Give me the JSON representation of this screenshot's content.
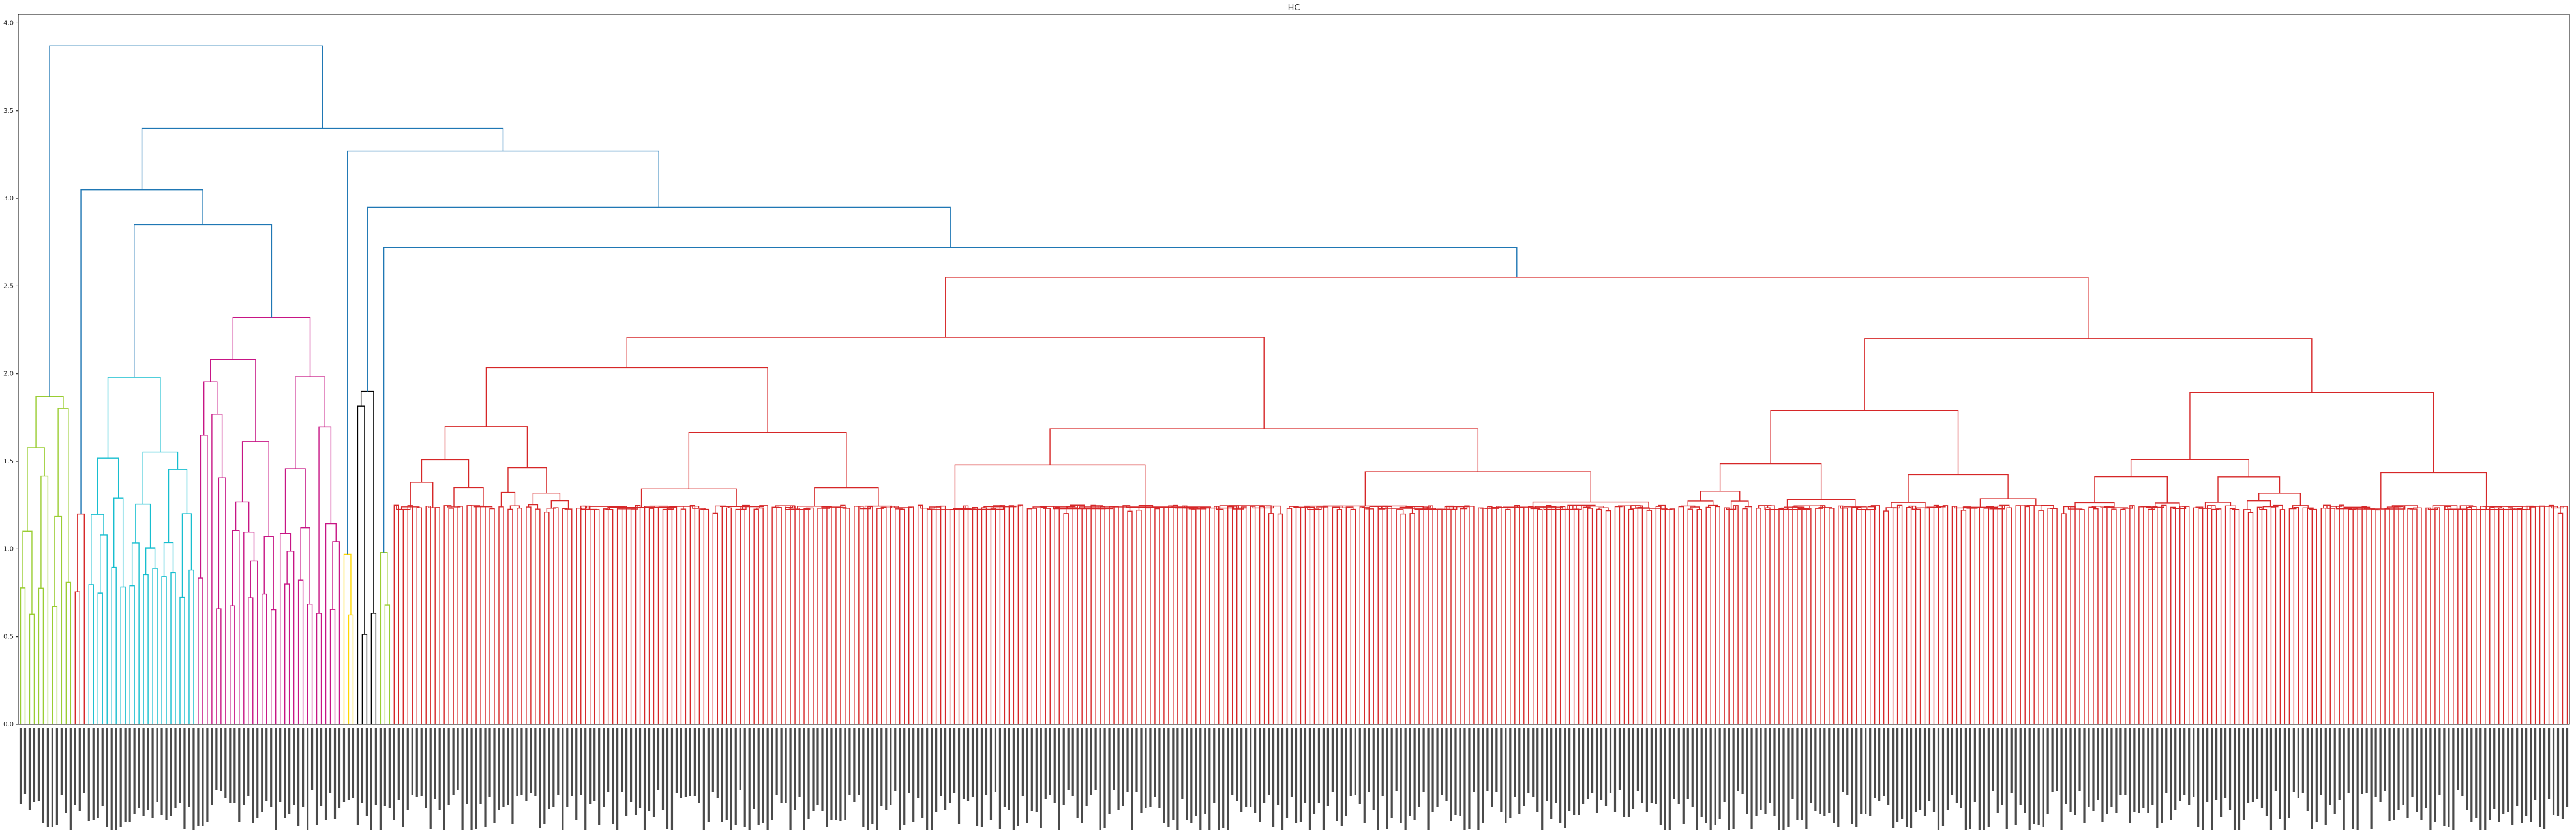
{
  "chart_data": {
    "type": "dendrogram",
    "title": "HC",
    "xlabel": "",
    "ylabel": "",
    "ylim": [
      0,
      4.05
    ],
    "yticks": [
      0.0,
      0.5,
      1.0,
      1.5,
      2.0,
      2.5,
      3.0,
      3.5,
      4.0
    ],
    "ytick_labels": [
      "0.0",
      "0.5",
      "1.0",
      "1.5",
      "2.0",
      "2.5",
      "3.0",
      "3.5",
      "4.0"
    ],
    "grid": false,
    "legend": "none",
    "leaf_count": 560,
    "link_color": "#1f77b4",
    "clusters": [
      {
        "color": "#9acd32",
        "leaves": 12,
        "height": 1.87,
        "base": 0.58
      },
      {
        "color": "#d62728",
        "leaves": 3,
        "height": 1.2,
        "base": 0.55
      },
      {
        "color": "#17becf",
        "leaves": 24,
        "height": 1.98,
        "base": 0.72
      },
      {
        "color": "#c71585",
        "leaves": 32,
        "height": 2.32,
        "base": 0.6
      },
      {
        "color": "#ffd700",
        "leaves": 3,
        "height": 0.97,
        "base": 0.6
      },
      {
        "color": "#000000",
        "leaves": 5,
        "height": 1.9,
        "base": 0.45
      },
      {
        "color": "#9acd32",
        "leaves": 3,
        "height": 0.98,
        "base": 0.55
      },
      {
        "color": "#d62728",
        "leaves": 478,
        "height": 2.55,
        "base": 1.2
      }
    ],
    "merges": [
      {
        "height": 3.87,
        "color": "#1f77b4"
      },
      {
        "height": 3.4,
        "color": "#1f77b4"
      },
      {
        "height": 3.27,
        "color": "#1f77b4"
      },
      {
        "height": 3.05,
        "color": "#1f77b4"
      },
      {
        "height": 2.95,
        "color": "#1f77b4"
      },
      {
        "height": 2.85,
        "color": "#1f77b4"
      },
      {
        "height": 2.72,
        "color": "#1f77b4"
      }
    ]
  }
}
